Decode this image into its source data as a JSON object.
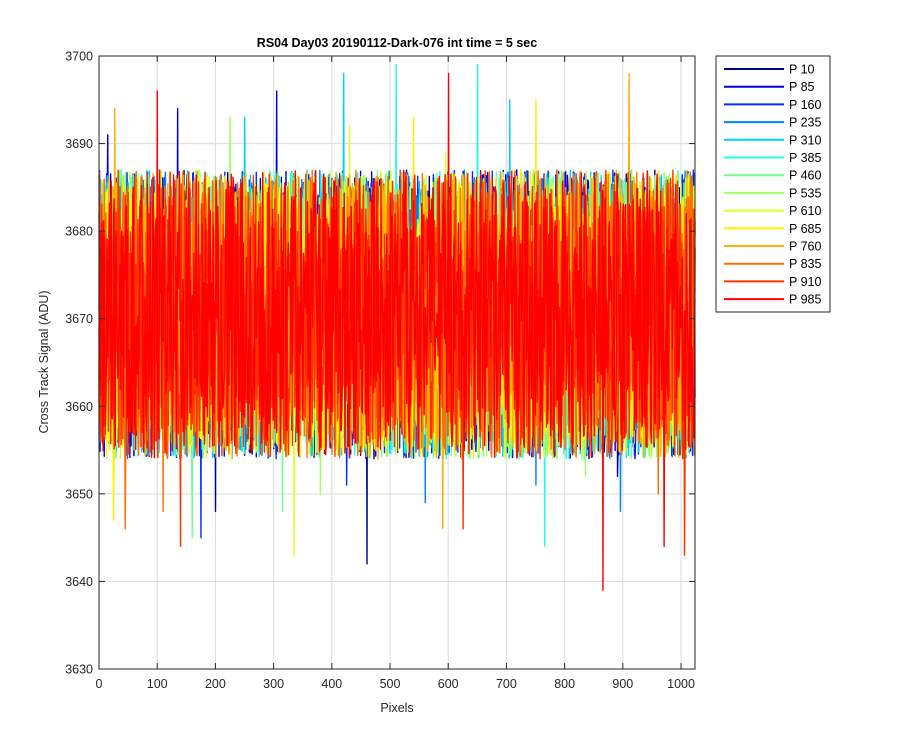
{
  "chart_data": {
    "type": "line",
    "title": "RS04 Day03 20190112-Dark-076 int time = 5 sec",
    "xlabel": "Pixels",
    "ylabel": "Cross Track Signal (ADU)",
    "xlim": [
      0,
      1024
    ],
    "ylim": [
      3630,
      3700
    ],
    "xticks": [
      0,
      100,
      200,
      300,
      400,
      500,
      600,
      700,
      800,
      900,
      1000
    ],
    "yticks": [
      3630,
      3640,
      3650,
      3660,
      3670,
      3680,
      3690,
      3700
    ],
    "grid": true,
    "legend_position": "outside-top-right",
    "noise": {
      "mean": 3670,
      "typical_min": 3654,
      "typical_max": 3687,
      "points_per_series": 1024
    },
    "series": [
      {
        "name": "P 10",
        "color": "#00008f",
        "seed": 11,
        "extremes": [
          [
            460,
            3642
          ],
          [
            200,
            3648
          ],
          [
            890,
            3652
          ]
        ]
      },
      {
        "name": "P 85",
        "color": "#0000df",
        "seed": 23,
        "extremes": [
          [
            135,
            3694
          ],
          [
            305,
            3696
          ],
          [
            15,
            3691
          ]
        ]
      },
      {
        "name": "P 160",
        "color": "#0030ff",
        "seed": 37,
        "extremes": [
          [
            175,
            3645
          ],
          [
            425,
            3651
          ],
          [
            650,
            3690
          ]
        ]
      },
      {
        "name": "P 235",
        "color": "#0080ff",
        "seed": 41,
        "extremes": [
          [
            560,
            3649
          ],
          [
            750,
            3651
          ],
          [
            895,
            3648
          ]
        ]
      },
      {
        "name": "P 310",
        "color": "#00cfff",
        "seed": 53,
        "extremes": [
          [
            420,
            3698
          ],
          [
            705,
            3695
          ],
          [
            250,
            3693
          ]
        ]
      },
      {
        "name": "P 385",
        "color": "#20ffdf",
        "seed": 67,
        "extremes": [
          [
            510,
            3699
          ],
          [
            650,
            3699
          ],
          [
            765,
            3644
          ]
        ]
      },
      {
        "name": "P 460",
        "color": "#70ff8f",
        "seed": 71,
        "extremes": [
          [
            160,
            3645
          ],
          [
            225,
            3690
          ],
          [
            315,
            3648
          ]
        ]
      },
      {
        "name": "P 535",
        "color": "#9fff60",
        "seed": 83,
        "extremes": [
          [
            225,
            3693
          ],
          [
            380,
            3650
          ],
          [
            835,
            3652
          ]
        ]
      },
      {
        "name": "P 610",
        "color": "#dfff20",
        "seed": 97,
        "extremes": [
          [
            335,
            3643
          ],
          [
            430,
            3692
          ],
          [
            595,
            3689
          ]
        ]
      },
      {
        "name": "P 685",
        "color": "#ffef00",
        "seed": 101,
        "extremes": [
          [
            25,
            3647
          ],
          [
            540,
            3693
          ],
          [
            750,
            3695
          ]
        ]
      },
      {
        "name": "P 760",
        "color": "#ffb000",
        "seed": 113,
        "extremes": [
          [
            27,
            3694
          ],
          [
            910,
            3698
          ],
          [
            590,
            3646
          ]
        ]
      },
      {
        "name": "P 835",
        "color": "#ff7000",
        "seed": 127,
        "extremes": [
          [
            45,
            3646
          ],
          [
            110,
            3648
          ],
          [
            960,
            3650
          ]
        ]
      },
      {
        "name": "P 910",
        "color": "#ff3000",
        "seed": 131,
        "extremes": [
          [
            140,
            3644
          ],
          [
            625,
            3646
          ],
          [
            1005,
            3643
          ]
        ]
      },
      {
        "name": "P 985",
        "color": "#ff0000",
        "seed": 139,
        "extremes": [
          [
            100,
            3696
          ],
          [
            600,
            3698
          ],
          [
            865,
            3639
          ],
          [
            970,
            3644
          ]
        ]
      }
    ]
  }
}
